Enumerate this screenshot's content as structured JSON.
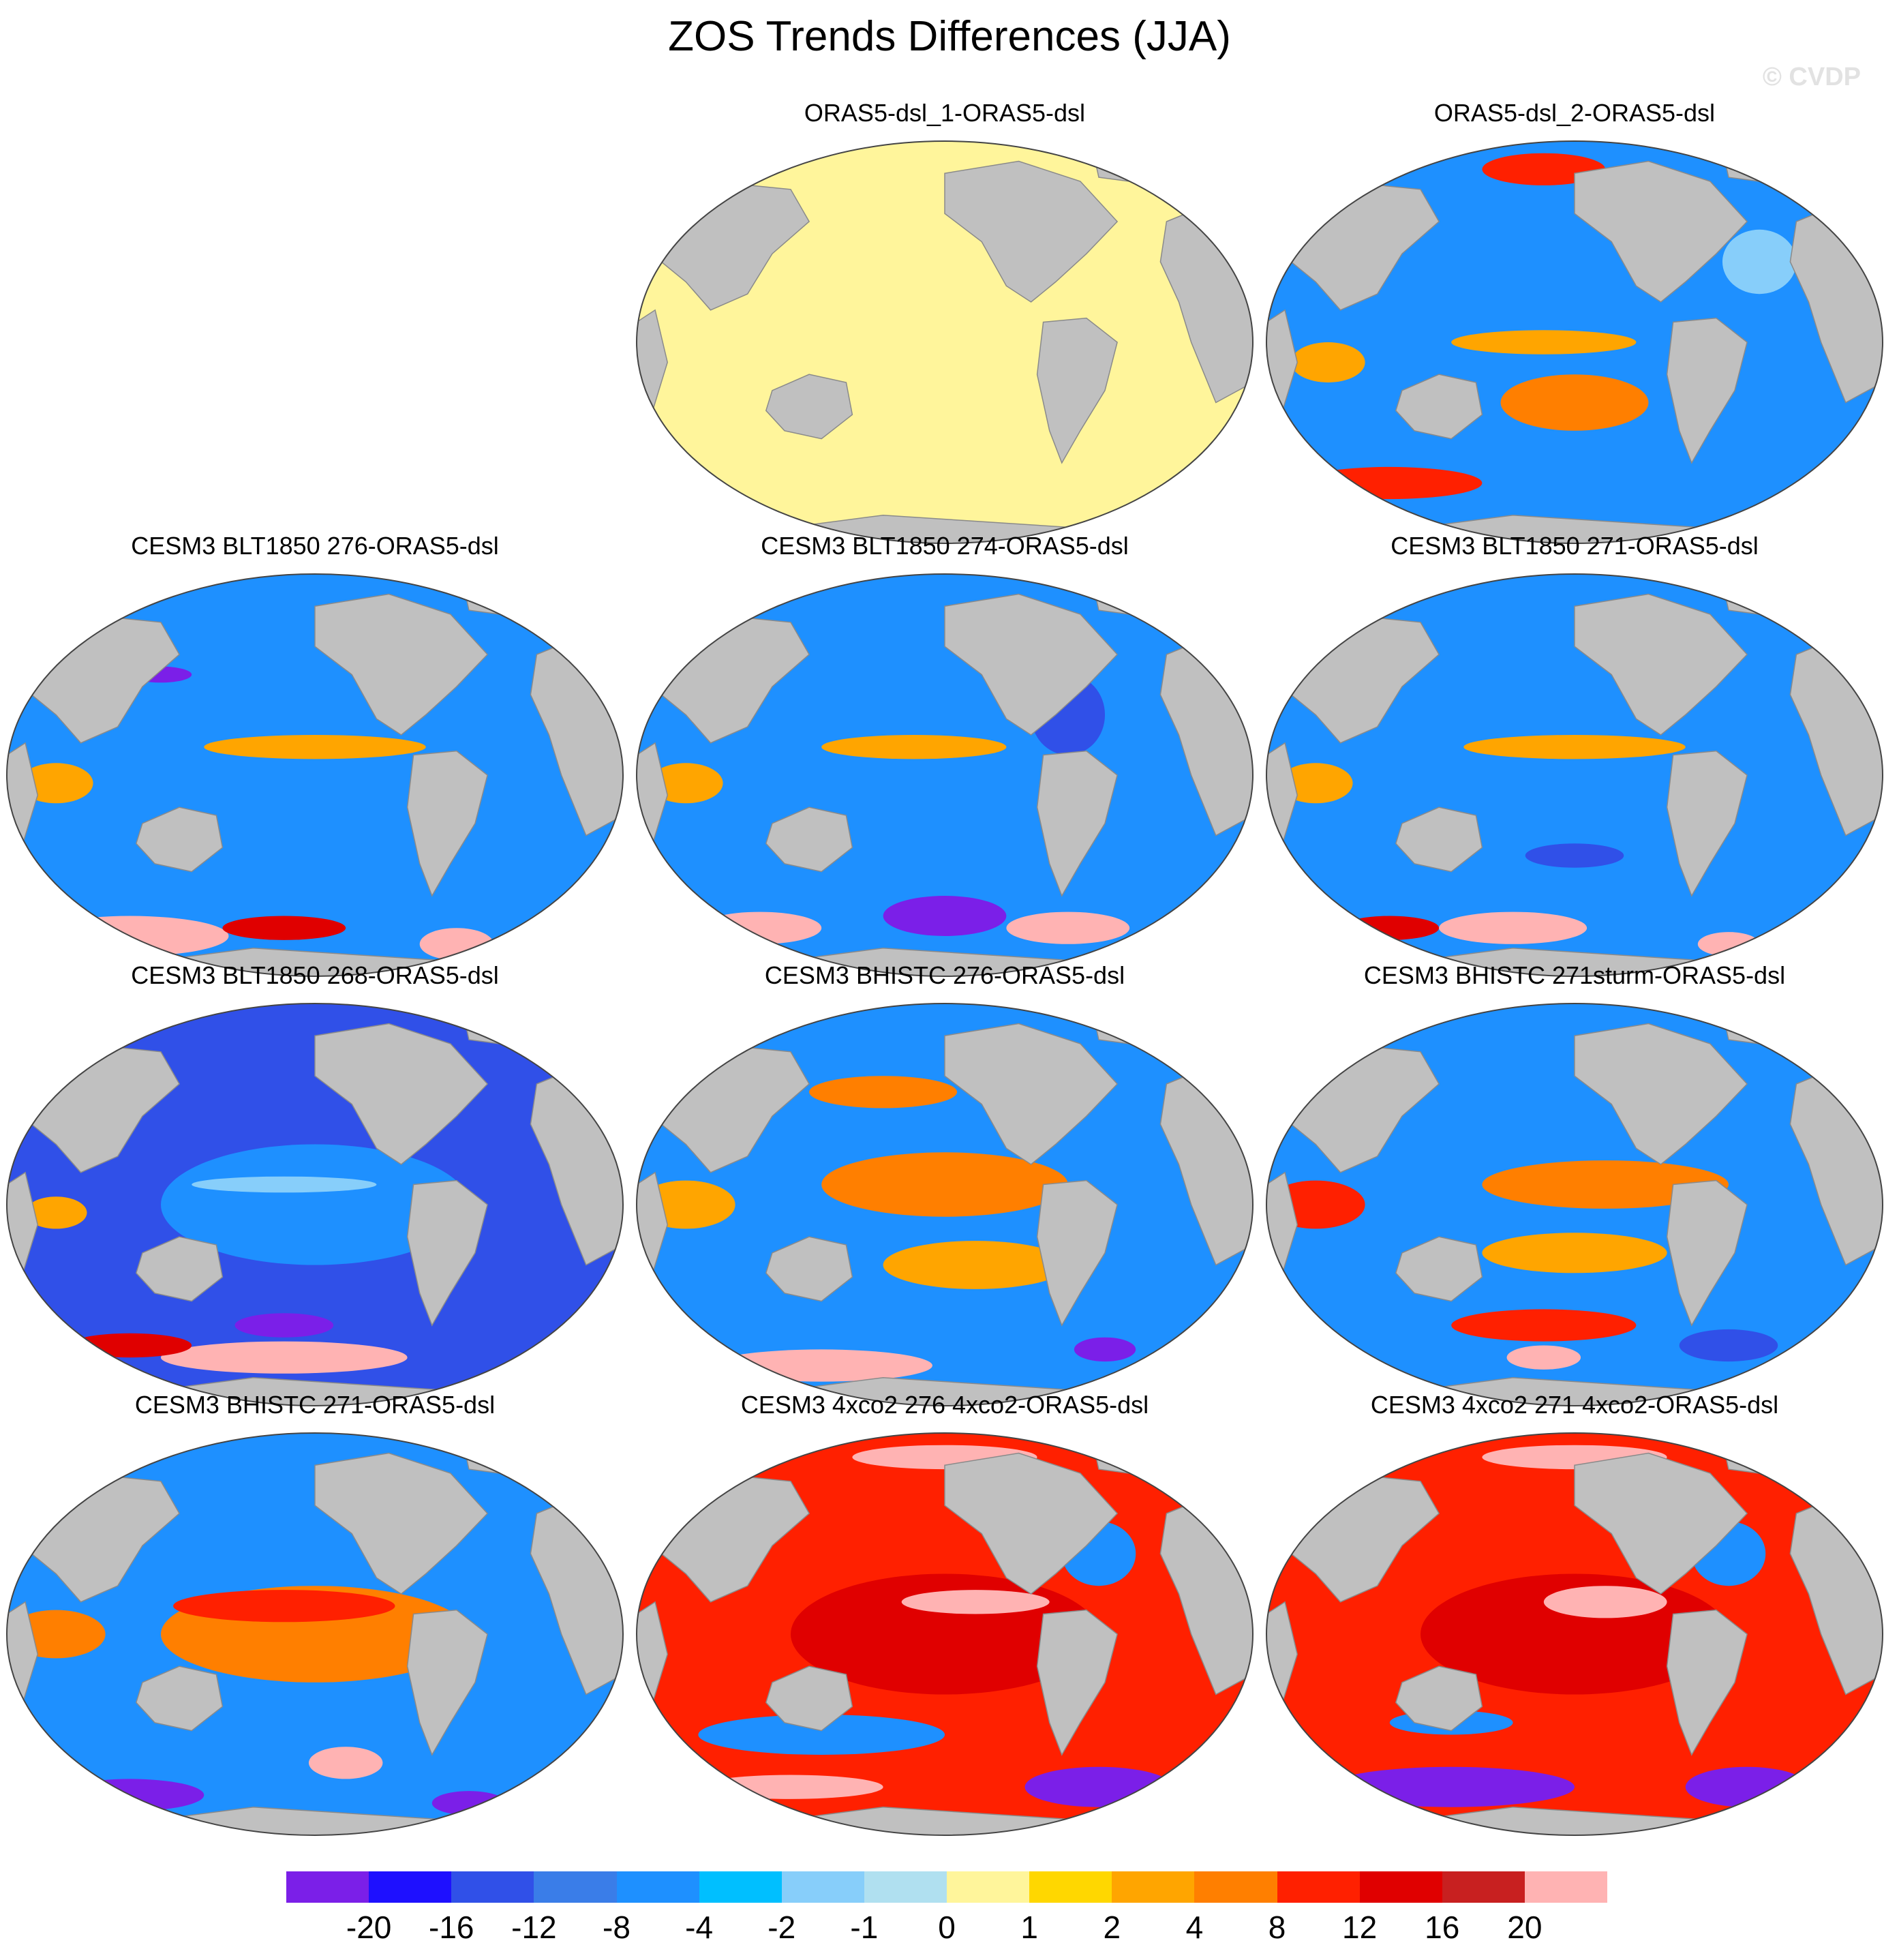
{
  "figure": {
    "title": "ZOS Trends Differences (JJA)",
    "credit": "© CVDP"
  },
  "palette": {
    "land": "#c0c0c0",
    "outline": "#8a8a8a",
    "white": "#ffffff"
  },
  "panels": [
    {
      "title": "ORAS5-dsl_1-ORAS5-dsl",
      "base": "#fff59b",
      "blobs": []
    },
    {
      "title": "ORAS5-dsl_2-ORAS5-dsl",
      "base": "#1e90ff",
      "blobs": [
        {
          "c": "#ff7f00",
          "ux": 0.5,
          "uy": 0.65,
          "rx": 0.12,
          "ry": 0.07
        },
        {
          "c": "#ffa500",
          "ux": 0.45,
          "uy": 0.5,
          "rx": 0.15,
          "ry": 0.03
        },
        {
          "c": "#ff2000",
          "ux": 0.45,
          "uy": 0.07,
          "rx": 0.1,
          "ry": 0.04
        },
        {
          "c": "#ff2000",
          "ux": 0.2,
          "uy": 0.85,
          "rx": 0.15,
          "ry": 0.04
        },
        {
          "c": "#ffa500",
          "ux": 0.1,
          "uy": 0.55,
          "rx": 0.06,
          "ry": 0.05
        },
        {
          "c": "#87cefa",
          "ux": 0.8,
          "uy": 0.3,
          "rx": 0.06,
          "ry": 0.08
        }
      ]
    },
    {
      "title": "CESM3 BLT1850 276-ORAS5-dsl",
      "base": "#1e90ff",
      "blobs": [
        {
          "c": "#ffa500",
          "ux": 0.5,
          "uy": 0.43,
          "rx": 0.18,
          "ry": 0.03
        },
        {
          "c": "#ffb3b3",
          "ux": 0.2,
          "uy": 0.9,
          "rx": 0.16,
          "ry": 0.05
        },
        {
          "c": "#ffb3b3",
          "ux": 0.73,
          "uy": 0.92,
          "rx": 0.06,
          "ry": 0.04
        },
        {
          "c": "#e00000",
          "ux": 0.45,
          "uy": 0.88,
          "rx": 0.1,
          "ry": 0.03
        },
        {
          "c": "#ffa500",
          "ux": 0.08,
          "uy": 0.52,
          "rx": 0.06,
          "ry": 0.05
        },
        {
          "c": "#7b1fe8",
          "ux": 0.25,
          "uy": 0.25,
          "rx": 0.05,
          "ry": 0.02
        }
      ]
    },
    {
      "title": "CESM3 BLT1850 274-ORAS5-dsl",
      "base": "#1e90ff",
      "blobs": [
        {
          "c": "#ffa500",
          "ux": 0.45,
          "uy": 0.43,
          "rx": 0.15,
          "ry": 0.03
        },
        {
          "c": "#7b1fe8",
          "ux": 0.5,
          "uy": 0.85,
          "rx": 0.1,
          "ry": 0.05
        },
        {
          "c": "#ffb3b3",
          "ux": 0.2,
          "uy": 0.88,
          "rx": 0.1,
          "ry": 0.04
        },
        {
          "c": "#ffb3b3",
          "ux": 0.7,
          "uy": 0.88,
          "rx": 0.1,
          "ry": 0.04
        },
        {
          "c": "#3050e8",
          "ux": 0.7,
          "uy": 0.35,
          "rx": 0.06,
          "ry": 0.1
        },
        {
          "c": "#ffa500",
          "ux": 0.08,
          "uy": 0.52,
          "rx": 0.06,
          "ry": 0.05
        }
      ]
    },
    {
      "title": "CESM3 BLT1850 271-ORAS5-dsl",
      "base": "#1e90ff",
      "blobs": [
        {
          "c": "#ffa500",
          "ux": 0.5,
          "uy": 0.43,
          "rx": 0.18,
          "ry": 0.03
        },
        {
          "c": "#ffb3b3",
          "ux": 0.4,
          "uy": 0.88,
          "rx": 0.12,
          "ry": 0.04
        },
        {
          "c": "#ffb3b3",
          "ux": 0.75,
          "uy": 0.92,
          "rx": 0.05,
          "ry": 0.03
        },
        {
          "c": "#e00000",
          "ux": 0.2,
          "uy": 0.88,
          "rx": 0.08,
          "ry": 0.03
        },
        {
          "c": "#ffa500",
          "ux": 0.08,
          "uy": 0.52,
          "rx": 0.06,
          "ry": 0.05
        },
        {
          "c": "#3050e8",
          "ux": 0.5,
          "uy": 0.7,
          "rx": 0.08,
          "ry": 0.03
        }
      ]
    },
    {
      "title": "CESM3 BLT1850 268-ORAS5-dsl",
      "base": "#3050e8",
      "blobs": [
        {
          "c": "#1e90ff",
          "ux": 0.5,
          "uy": 0.5,
          "rx": 0.25,
          "ry": 0.15
        },
        {
          "c": "#87cefa",
          "ux": 0.45,
          "uy": 0.45,
          "rx": 0.15,
          "ry": 0.02
        },
        {
          "c": "#ffb3b3",
          "ux": 0.45,
          "uy": 0.88,
          "rx": 0.2,
          "ry": 0.04
        },
        {
          "c": "#e00000",
          "ux": 0.2,
          "uy": 0.85,
          "rx": 0.1,
          "ry": 0.03
        },
        {
          "c": "#ffa500",
          "ux": 0.08,
          "uy": 0.52,
          "rx": 0.05,
          "ry": 0.04
        },
        {
          "c": "#7b1fe8",
          "ux": 0.45,
          "uy": 0.8,
          "rx": 0.08,
          "ry": 0.03
        }
      ]
    },
    {
      "title": "CESM3 BHISTC 276-ORAS5-dsl",
      "base": "#1e90ff",
      "blobs": [
        {
          "c": "#ff7f00",
          "ux": 0.5,
          "uy": 0.45,
          "rx": 0.2,
          "ry": 0.08
        },
        {
          "c": "#ffa500",
          "ux": 0.55,
          "uy": 0.65,
          "rx": 0.15,
          "ry": 0.06
        },
        {
          "c": "#ffb3b3",
          "ux": 0.3,
          "uy": 0.9,
          "rx": 0.18,
          "ry": 0.04
        },
        {
          "c": "#ffa500",
          "ux": 0.08,
          "uy": 0.5,
          "rx": 0.08,
          "ry": 0.06
        },
        {
          "c": "#7b1fe8",
          "ux": 0.76,
          "uy": 0.86,
          "rx": 0.05,
          "ry": 0.03
        },
        {
          "c": "#ff7f00",
          "ux": 0.4,
          "uy": 0.22,
          "rx": 0.12,
          "ry": 0.04
        }
      ]
    },
    {
      "title": "CESM3 BHISTC 271sturm-ORAS5-dsl",
      "base": "#1e90ff",
      "blobs": [
        {
          "c": "#ff7f00",
          "ux": 0.55,
          "uy": 0.45,
          "rx": 0.2,
          "ry": 0.06
        },
        {
          "c": "#ffa500",
          "ux": 0.5,
          "uy": 0.62,
          "rx": 0.15,
          "ry": 0.05
        },
        {
          "c": "#ffb3b3",
          "ux": 0.45,
          "uy": 0.88,
          "rx": 0.06,
          "ry": 0.03
        },
        {
          "c": "#ff2000",
          "ux": 0.08,
          "uy": 0.5,
          "rx": 0.08,
          "ry": 0.06
        },
        {
          "c": "#ff2000",
          "ux": 0.45,
          "uy": 0.8,
          "rx": 0.15,
          "ry": 0.04
        },
        {
          "c": "#3050e8",
          "ux": 0.75,
          "uy": 0.85,
          "rx": 0.08,
          "ry": 0.04
        }
      ]
    },
    {
      "title": "CESM3 BHISTC 271-ORAS5-dsl",
      "base": "#1e90ff",
      "blobs": [
        {
          "c": "#ff7f00",
          "ux": 0.5,
          "uy": 0.5,
          "rx": 0.25,
          "ry": 0.12
        },
        {
          "c": "#ff2000",
          "ux": 0.45,
          "uy": 0.43,
          "rx": 0.18,
          "ry": 0.04
        },
        {
          "c": "#ffb3b3",
          "ux": 0.55,
          "uy": 0.82,
          "rx": 0.06,
          "ry": 0.04
        },
        {
          "c": "#7b1fe8",
          "ux": 0.2,
          "uy": 0.9,
          "rx": 0.12,
          "ry": 0.04
        },
        {
          "c": "#7b1fe8",
          "ux": 0.75,
          "uy": 0.92,
          "rx": 0.06,
          "ry": 0.03
        },
        {
          "c": "#ff7f00",
          "ux": 0.08,
          "uy": 0.5,
          "rx": 0.08,
          "ry": 0.06
        }
      ]
    },
    {
      "title": "CESM3 4xco2 276 4xco2-ORAS5-dsl",
      "base": "#ff2000",
      "blobs": [
        {
          "c": "#e00000",
          "ux": 0.5,
          "uy": 0.5,
          "rx": 0.25,
          "ry": 0.15
        },
        {
          "c": "#ffb3b3",
          "ux": 0.55,
          "uy": 0.42,
          "rx": 0.12,
          "ry": 0.03
        },
        {
          "c": "#1e90ff",
          "ux": 0.3,
          "uy": 0.75,
          "rx": 0.2,
          "ry": 0.05
        },
        {
          "c": "#7b1fe8",
          "ux": 0.75,
          "uy": 0.88,
          "rx": 0.12,
          "ry": 0.05
        },
        {
          "c": "#ffb3b3",
          "ux": 0.25,
          "uy": 0.88,
          "rx": 0.15,
          "ry": 0.03
        },
        {
          "c": "#ffb3b3",
          "ux": 0.5,
          "uy": 0.06,
          "rx": 0.15,
          "ry": 0.03
        },
        {
          "c": "#1e90ff",
          "ux": 0.75,
          "uy": 0.3,
          "rx": 0.06,
          "ry": 0.08
        }
      ]
    },
    {
      "title": "CESM3 4xco2 271 4xco2-ORAS5-dsl",
      "base": "#ff2000",
      "blobs": [
        {
          "c": "#e00000",
          "ux": 0.5,
          "uy": 0.5,
          "rx": 0.25,
          "ry": 0.15
        },
        {
          "c": "#ffb3b3",
          "ux": 0.55,
          "uy": 0.42,
          "rx": 0.1,
          "ry": 0.04
        },
        {
          "c": "#7b1fe8",
          "ux": 0.3,
          "uy": 0.88,
          "rx": 0.2,
          "ry": 0.05
        },
        {
          "c": "#7b1fe8",
          "ux": 0.78,
          "uy": 0.88,
          "rx": 0.1,
          "ry": 0.05
        },
        {
          "c": "#ffb3b3",
          "ux": 0.5,
          "uy": 0.06,
          "rx": 0.15,
          "ry": 0.03
        },
        {
          "c": "#1e90ff",
          "ux": 0.75,
          "uy": 0.3,
          "rx": 0.06,
          "ry": 0.08
        },
        {
          "c": "#1e90ff",
          "ux": 0.3,
          "uy": 0.72,
          "rx": 0.1,
          "ry": 0.03
        }
      ]
    }
  ],
  "colorbar": {
    "colors": [
      "#7b1fe8",
      "#1e10ff",
      "#3050e8",
      "#3a7de8",
      "#1e90ff",
      "#00bfff",
      "#87cefa",
      "#b0e0f0",
      "#fff59b",
      "#ffd700",
      "#ffa500",
      "#ff7f00",
      "#ff2000",
      "#e00000",
      "#c82020",
      "#ffb3b3"
    ],
    "labels": [
      "-20",
      "-16",
      "-12",
      "-8",
      "-4",
      "-2",
      "-1",
      "0",
      "1",
      "2",
      "4",
      "8",
      "12",
      "16",
      "20"
    ]
  }
}
